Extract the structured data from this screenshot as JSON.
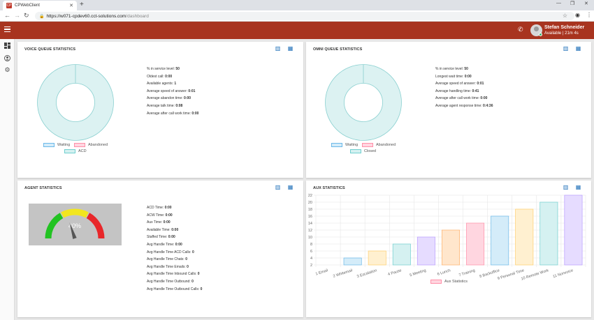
{
  "browser": {
    "tab_title": "CPWebClient",
    "url_host": "https://w071-cpdev60.cct-solutions.com",
    "url_path": "/dashboard"
  },
  "header": {
    "user_name": "Stefan Schneider",
    "user_status": "Available | 21m 4s"
  },
  "colors": {
    "header": "#a8341f",
    "accent": "#1e6fb8"
  },
  "voice": {
    "title": "VOICE QUEUE STATISTICS",
    "stats": [
      {
        "label": "% in service level:",
        "value": "50"
      },
      {
        "label": "Oldest call:",
        "value": "0:00"
      },
      {
        "label": "Available agents:",
        "value": "1"
      },
      {
        "label": "Average speed of answer:",
        "value": "0:01"
      },
      {
        "label": "Average abandon time:",
        "value": "0:00"
      },
      {
        "label": "Average talk time:",
        "value": "0:08"
      },
      {
        "label": "Average after call work time:",
        "value": "0:00"
      }
    ],
    "legend": [
      "Waiting",
      "Abandoned",
      "ACD"
    ]
  },
  "omni": {
    "title": "OMNI QUEUE STATISTICS",
    "stats": [
      {
        "label": "% in service level:",
        "value": "50"
      },
      {
        "label": "Longest wait time:",
        "value": "0:00"
      },
      {
        "label": "Average speed of answer:",
        "value": "0:01"
      },
      {
        "label": "Average handling time:",
        "value": "0:41"
      },
      {
        "label": "Average after call work time:",
        "value": "0:00"
      },
      {
        "label": "Average agent response time:",
        "value": "0:4:36"
      }
    ],
    "legend": [
      "Waiting",
      "Abandoned",
      "Closed"
    ]
  },
  "agent": {
    "title": "AGENT STATISTICS",
    "gauge_label": "40%",
    "gauge_value": 40,
    "stats": [
      {
        "label": "ACD Time:",
        "value": "0:00"
      },
      {
        "label": "ACW Time:",
        "value": "0:00"
      },
      {
        "label": "Aux Time:",
        "value": "0:00"
      },
      {
        "label": "Available Time:",
        "value": "0:00"
      },
      {
        "label": "Staffed Time:",
        "value": "0:00"
      },
      {
        "label": "Avg Handle Time:",
        "value": "0:00"
      },
      {
        "label": "Avg Handle Time ACD Calls:",
        "value": "0"
      },
      {
        "label": "Avg Handle Time Chats:",
        "value": "0"
      },
      {
        "label": "Avg Handle Time Emails:",
        "value": "0"
      },
      {
        "label": "Avg Handle Time Inbound Calls:",
        "value": "0"
      },
      {
        "label": "Avg Handle Time Outbound:",
        "value": "0"
      },
      {
        "label": "Avg Handle Time Outbound Calls:",
        "value": "0"
      }
    ]
  },
  "aux": {
    "title": "AUX STATISTICS"
  },
  "chart_data": {
    "type": "bar",
    "categories": [
      "1 Email",
      "2 Whitemail",
      "3 Escalation",
      "4 Pause",
      "5 Meeting",
      "6 Lunch",
      "7 Training",
      "8 Backoffice",
      "9 Personal Time",
      "10 Remote Work",
      "11 Nonvoice"
    ],
    "series": [
      {
        "name": "Aux Statistics",
        "values": [
          2,
          4,
          6,
          8,
          10,
          12,
          14,
          16,
          18,
          20,
          22
        ]
      }
    ],
    "ylim": [
      2,
      22
    ],
    "yticks": [
      2,
      4,
      6,
      8,
      10,
      12,
      14,
      16,
      18,
      20,
      22
    ],
    "legend": "bottom",
    "grid": true,
    "bar_fills": [
      "#ffd6e0",
      "#d4ecf9",
      "#fff0d0",
      "#d5f1f1",
      "#e6dcff",
      "#ffe6cc",
      "#ffd6e0",
      "#d4ecf9",
      "#fff0d0",
      "#d5f1f1",
      "#e6dcff"
    ],
    "bar_strokes": [
      "#ff8fa8",
      "#6bb8e8",
      "#ffce6b",
      "#6fcfcf",
      "#b89cff",
      "#ffb26b",
      "#ff8fa8",
      "#6bb8e8",
      "#ffce6b",
      "#6fcfcf",
      "#b89cff"
    ]
  }
}
